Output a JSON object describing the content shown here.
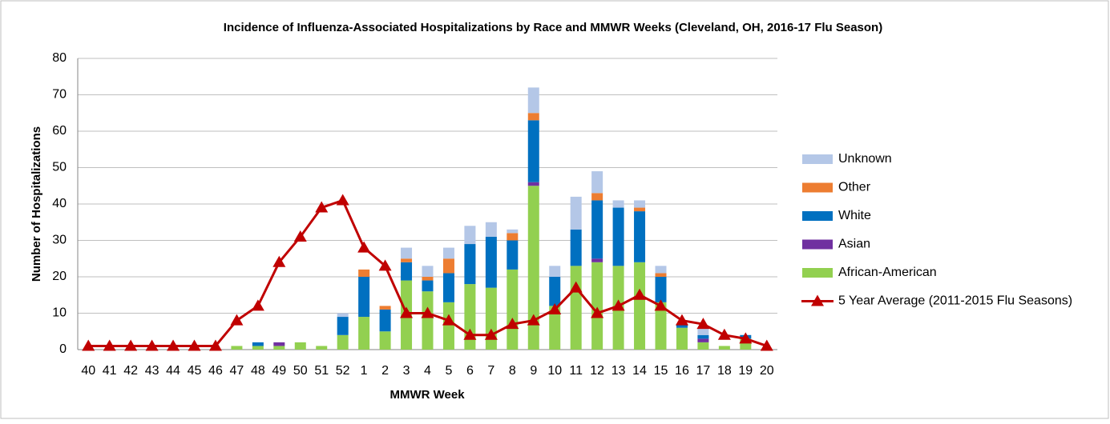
{
  "chart_data": {
    "type": "bar",
    "title": "Incidence of Influenza-Associated Hospitalizations by Race and MMWR Weeks (Cleveland, OH, 2016-17 Flu Season)",
    "x_label": "MMWR Week",
    "y_label": "Number of Hospitalizations",
    "categories": [
      "40",
      "41",
      "42",
      "43",
      "44",
      "45",
      "46",
      "47",
      "48",
      "49",
      "50",
      "51",
      "52",
      "1",
      "2",
      "3",
      "4",
      "5",
      "6",
      "7",
      "8",
      "9",
      "10",
      "11",
      "12",
      "13",
      "14",
      "15",
      "16",
      "17",
      "18",
      "19",
      "20"
    ],
    "ylim": [
      0,
      80
    ],
    "yticks": [
      0,
      10,
      20,
      30,
      40,
      50,
      60,
      70,
      80
    ],
    "grid": true,
    "legend": "right",
    "series": [
      {
        "name": "African-American",
        "color": "#92d050",
        "values": [
          0,
          0,
          0,
          0,
          0,
          0,
          0,
          1,
          1,
          1,
          2,
          1,
          4,
          9,
          5,
          19,
          16,
          13,
          18,
          17,
          22,
          45,
          12,
          23,
          24,
          23,
          24,
          13,
          6,
          2,
          1,
          3,
          0
        ]
      },
      {
        "name": "Asian",
        "color": "#7030a0",
        "values": [
          0,
          0,
          0,
          0,
          0,
          0,
          0,
          0,
          0,
          1,
          0,
          0,
          0,
          0,
          0,
          0,
          0,
          0,
          0,
          0,
          0,
          1,
          0,
          0,
          1,
          0,
          0,
          0,
          0,
          1,
          0,
          0,
          0
        ]
      },
      {
        "name": "White",
        "color": "#0070c0",
        "values": [
          0,
          0,
          0,
          0,
          0,
          0,
          0,
          0,
          1,
          0,
          0,
          0,
          5,
          11,
          6,
          5,
          3,
          8,
          11,
          14,
          8,
          17,
          8,
          10,
          16,
          16,
          14,
          7,
          1,
          1,
          0,
          1,
          0
        ]
      },
      {
        "name": "Other",
        "color": "#ed7d31",
        "values": [
          0,
          0,
          0,
          0,
          0,
          0,
          0,
          0,
          0,
          0,
          0,
          0,
          0,
          2,
          1,
          1,
          1,
          4,
          0,
          0,
          2,
          2,
          0,
          0,
          2,
          0,
          1,
          1,
          0,
          0,
          0,
          0,
          0
        ]
      },
      {
        "name": "Unknown",
        "color": "#b4c7e7",
        "values": [
          0,
          0,
          0,
          0,
          0,
          0,
          0,
          0,
          0,
          0,
          0,
          0,
          1,
          0,
          0,
          3,
          3,
          3,
          5,
          4,
          1,
          7,
          3,
          9,
          6,
          2,
          2,
          2,
          0,
          2,
          0,
          0,
          0
        ]
      },
      {
        "name": "5 Year Average (2011-2015 Flu Seasons)",
        "type": "line",
        "color": "#c00000",
        "values": [
          1,
          1,
          1,
          1,
          1,
          1,
          1,
          8,
          12,
          24,
          31,
          39,
          41,
          28,
          23,
          10,
          10,
          8,
          4,
          4,
          7,
          8,
          11,
          17,
          10,
          12,
          15,
          12,
          8,
          7,
          4,
          3,
          1
        ]
      }
    ]
  }
}
